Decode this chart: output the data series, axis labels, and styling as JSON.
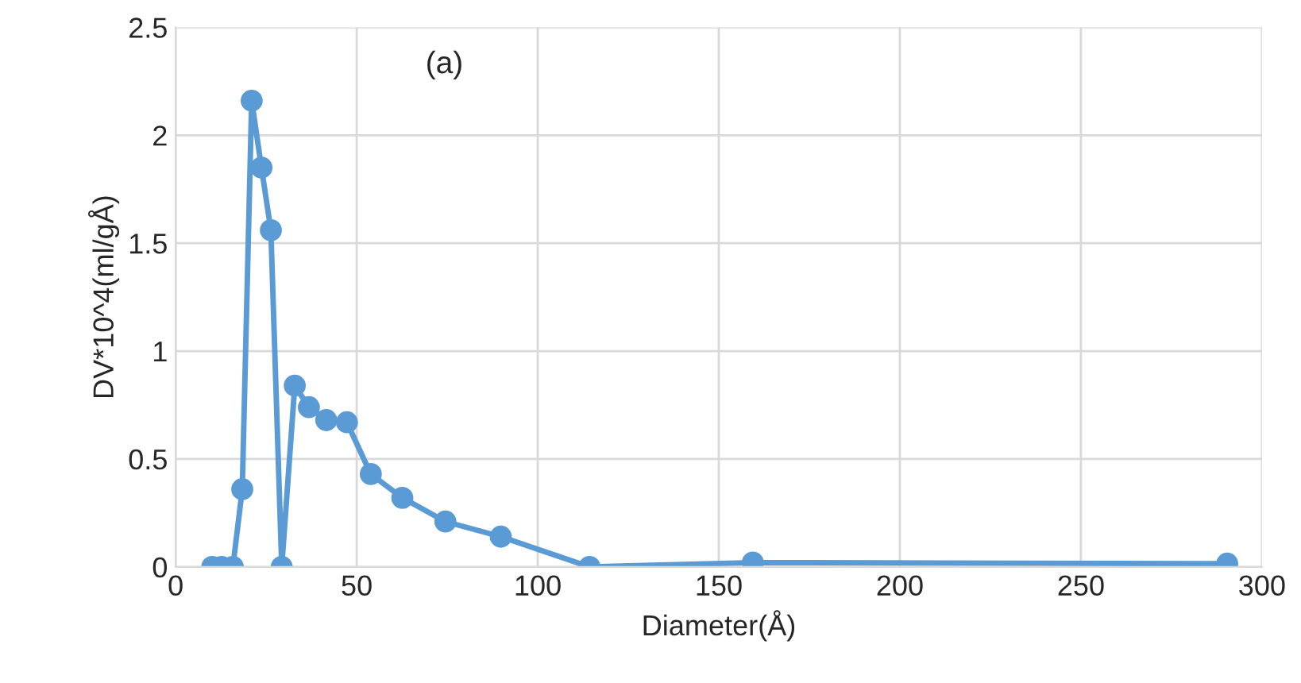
{
  "chart_data": {
    "type": "line",
    "xlabel": "Diameter(Å)",
    "ylabel": "DV*10^4(ml/gÅ)",
    "annotations": [
      "(a)"
    ],
    "series": [
      {
        "color": "#5b9bd5",
        "x": [
          10.1,
          12.7,
          15.8,
          18.4,
          21.0,
          23.7,
          26.3,
          29.3,
          32.9,
          36.8,
          41.6,
          47.3,
          53.9,
          62.6,
          74.5,
          89.8,
          114.3,
          159.4,
          290.4
        ],
        "values": [
          0,
          0,
          0,
          0.36,
          2.16,
          1.85,
          1.56,
          0,
          0.84,
          0.74,
          0.68,
          0.67,
          0.43,
          0.32,
          0.21,
          0.14,
          0,
          0.02,
          0.015
        ]
      }
    ],
    "xlim": [
      0,
      300
    ],
    "xticks": [
      0,
      50,
      100,
      150,
      200,
      250,
      300
    ],
    "ylim": [
      0,
      2.5
    ],
    "yticks": [
      0,
      0.5,
      1,
      1.5,
      2,
      2.5
    ],
    "grid": true,
    "marker": "circle",
    "line_style": "solid"
  }
}
